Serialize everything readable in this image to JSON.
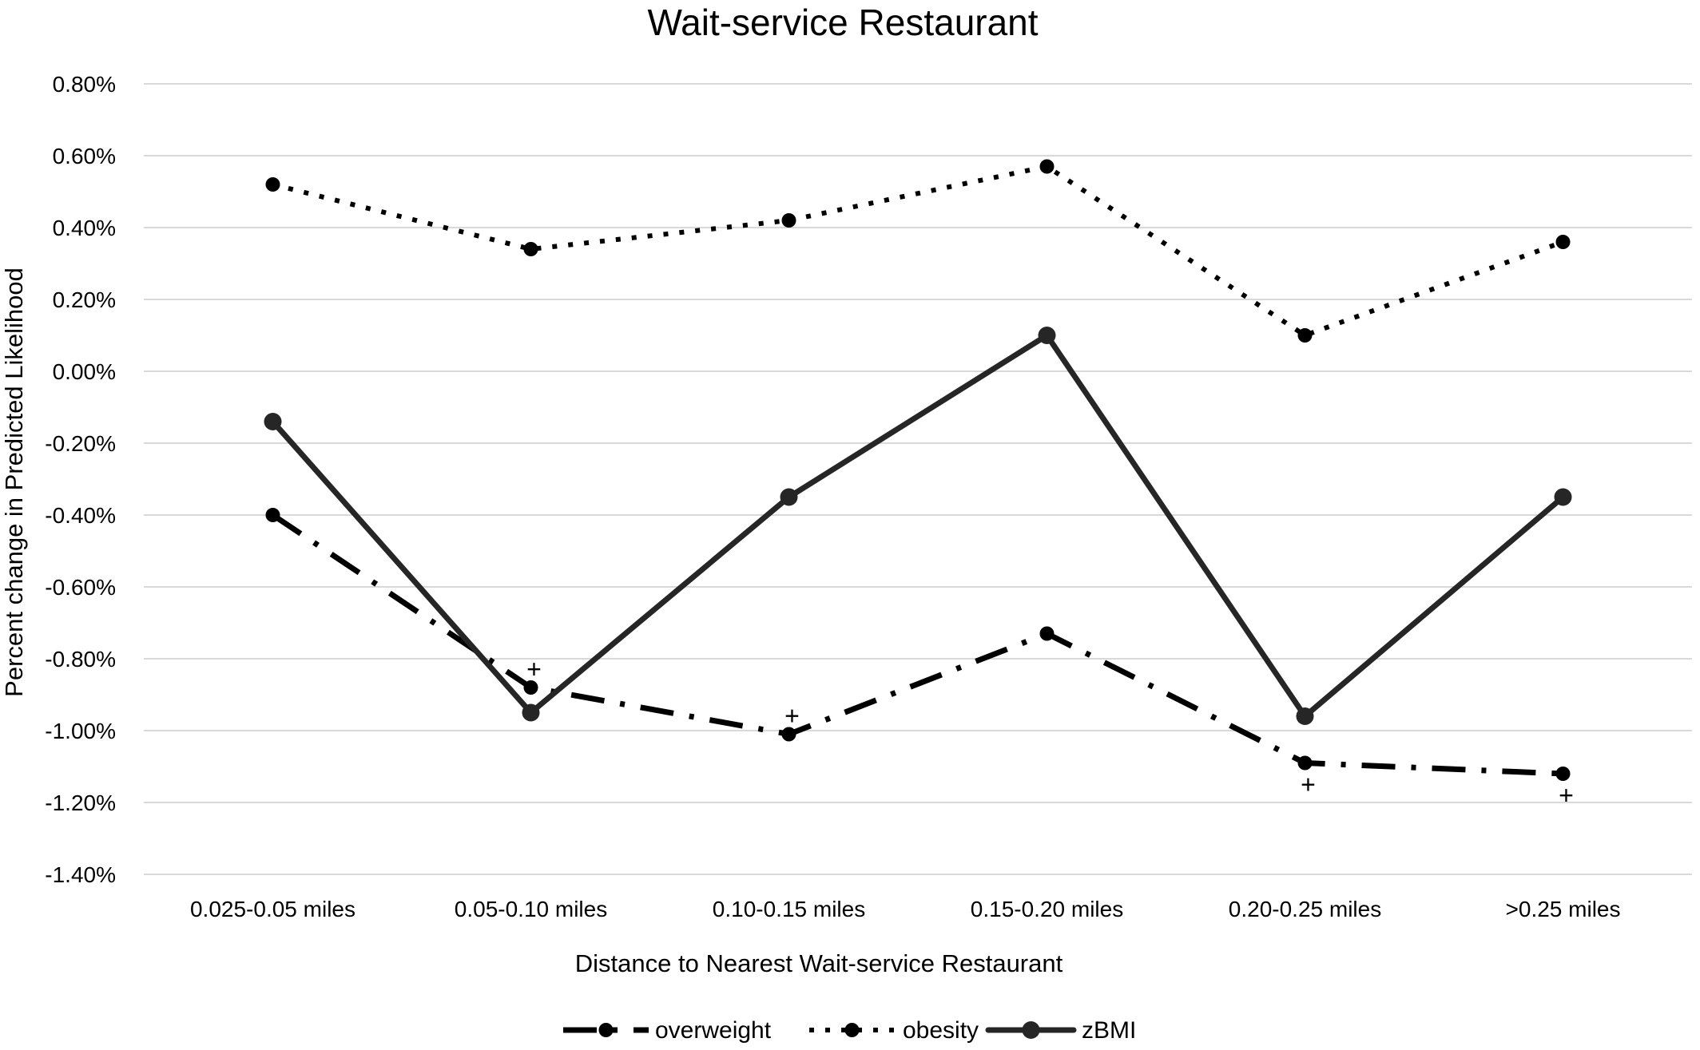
{
  "chart_data": {
    "type": "line",
    "title": "Wait-service Restaurant",
    "xlabel": "Distance to Nearest Wait-service Restaurant",
    "ylabel": "Percent change in Predicted Likelihood",
    "categories": [
      "0.025-0.05 miles",
      "0.05-0.10 miles",
      "0.10-0.15 miles",
      "0.15-0.20 miles",
      "0.20-0.25 miles",
      ">0.25 miles"
    ],
    "ylim": [
      -1.4,
      0.8
    ],
    "yticks": [
      0.8,
      0.6,
      0.4,
      0.2,
      0.0,
      -0.2,
      -0.4,
      -0.6,
      -0.8,
      -1.0,
      -1.2,
      -1.4
    ],
    "ytick_labels": [
      "0.80%",
      "0.60%",
      "0.40%",
      "0.20%",
      "0.00%",
      "-0.20%",
      "-0.40%",
      "-0.60%",
      "-0.80%",
      "-1.00%",
      "-1.20%",
      "-1.40%"
    ],
    "grid": true,
    "legend_position": "bottom",
    "series": [
      {
        "name": "overweight",
        "style": "dash-dot",
        "values": [
          -0.4,
          -0.88,
          -1.01,
          -0.73,
          -1.09,
          -1.12
        ],
        "significance_marks": [
          "",
          "+",
          "+",
          "",
          "+",
          "+"
        ]
      },
      {
        "name": "obesity",
        "style": "dotted",
        "values": [
          0.52,
          0.34,
          0.42,
          0.57,
          0.1,
          0.36
        ]
      },
      {
        "name": "zBMI",
        "style": "solid",
        "values": [
          -0.14,
          -0.95,
          -0.35,
          0.1,
          -0.96,
          -0.35
        ]
      }
    ],
    "colors": {
      "line": "#000000",
      "solid_line": "#262626",
      "grid": "#d9d9d9"
    }
  }
}
